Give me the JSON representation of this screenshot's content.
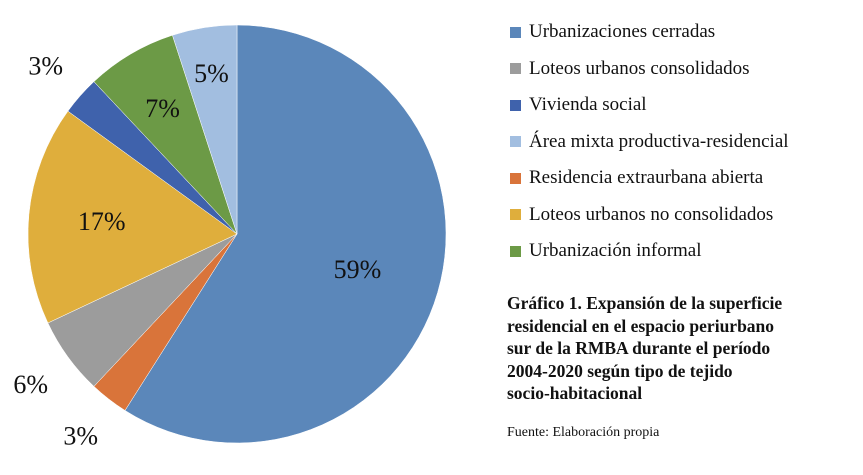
{
  "chart_data": {
    "type": "pie",
    "title": "",
    "slices": [
      {
        "name": "Urbanizaciones cerradas",
        "value": 59,
        "label": "59%",
        "color": "#5B87BA"
      },
      {
        "name": "Residencia extraurbana abierta",
        "value": 3,
        "label": "3%",
        "color": "#D9743A"
      },
      {
        "name": "Loteos urbanos consolidados",
        "value": 6,
        "label": "6%",
        "color": "#9C9C9C"
      },
      {
        "name": "Loteos urbanos no consolidados",
        "value": 17,
        "label": "17%",
        "color": "#DFAE3C"
      },
      {
        "name": "Vivienda social",
        "value": 3,
        "label": "3%",
        "color": "#3F62AC"
      },
      {
        "name": "Urbanización informal",
        "value": 7,
        "label": "7%",
        "color": "#6C9A46"
      },
      {
        "name": "Área mixta productiva-residencial",
        "value": 5,
        "label": "5%",
        "color": "#A2BEE0"
      }
    ],
    "legend": {
      "position": "right",
      "entries": [
        {
          "name": "Urbanizaciones cerradas",
          "color": "#5B87BA"
        },
        {
          "name": "Loteos urbanos consolidados",
          "color": "#9C9C9C"
        },
        {
          "name": "Vivienda social",
          "color": "#3F62AC"
        },
        {
          "name": "Área mixta productiva-residencial",
          "color": "#A2BEE0"
        },
        {
          "name": "Residencia extraurbana abierta",
          "color": "#D9743A"
        },
        {
          "name": "Loteos urbanos no consolidados",
          "color": "#DFAE3C"
        },
        {
          "name": "Urbanización informal",
          "color": "#6C9A46"
        }
      ]
    }
  },
  "caption": {
    "lines": [
      "Gráfico 1. Expansión de la superficie",
      " residencial en el espacio periurbano",
      "sur de la  RMBA durante el período",
      "2004-2020 según tipo de tejido",
      "socio-habitacional"
    ],
    "source": "Fuente: Elaboración propia"
  }
}
